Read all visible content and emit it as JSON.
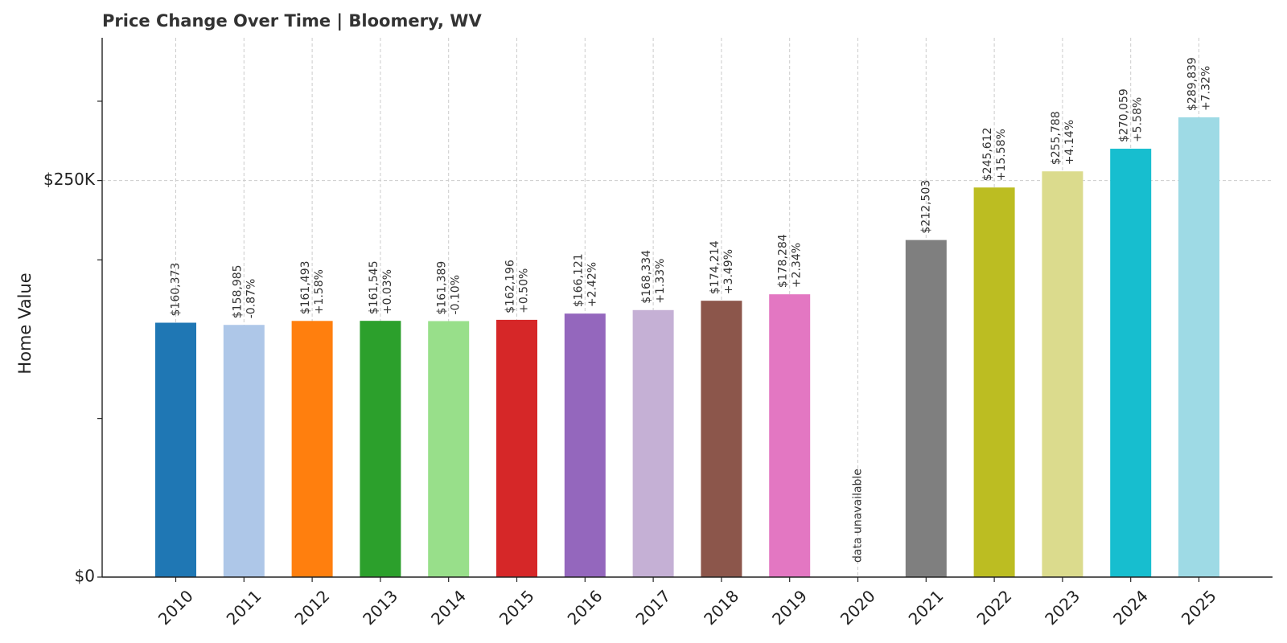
{
  "chart_data": {
    "type": "bar",
    "title": "Price Change Over Time | Bloomery, WV",
    "xlabel": "",
    "ylabel": "Home Value",
    "ylim": [
      0,
      340000
    ],
    "yticks": [
      {
        "value": 0,
        "label": "$0"
      },
      {
        "value": 250000,
        "label": "$250K"
      }
    ],
    "grid": true,
    "categories": [
      "2010",
      "2011",
      "2012",
      "2013",
      "2014",
      "2015",
      "2016",
      "2017",
      "2018",
      "2019",
      "2020",
      "2021",
      "2022",
      "2023",
      "2024",
      "2025"
    ],
    "values": [
      160373,
      158985,
      161493,
      161545,
      161389,
      162196,
      166121,
      168334,
      174214,
      178284,
      null,
      212503,
      245612,
      255788,
      270059,
      289839
    ],
    "value_labels": [
      "$160,373",
      "$158,985",
      "$161,493",
      "$161,545",
      "$161,389",
      "$162,196",
      "$166,121",
      "$168,334",
      "$174,214",
      "$178,284",
      "",
      "$212,503",
      "$245,612",
      "$255,788",
      "$270,059",
      "$289,839"
    ],
    "change_labels": [
      "",
      "-0.87%",
      "+1.58%",
      "+0.03%",
      "-0.10%",
      "+0.50%",
      "+2.42%",
      "+1.33%",
      "+3.49%",
      "+2.34%",
      "",
      "",
      "+15.58%",
      "+4.14%",
      "+5.58%",
      "+7.32%"
    ],
    "missing_label": "data unavailable",
    "colors": [
      "#1f77b4",
      "#aec7e8",
      "#ff7f0e",
      "#2ca02c",
      "#98df8a",
      "#d62728",
      "#9467bd",
      "#c5b0d5",
      "#8c564b",
      "#e377c2",
      "#f7b6d2",
      "#7f7f7f",
      "#bcbd22",
      "#dbdb8d",
      "#17becf",
      "#9edae5"
    ]
  }
}
